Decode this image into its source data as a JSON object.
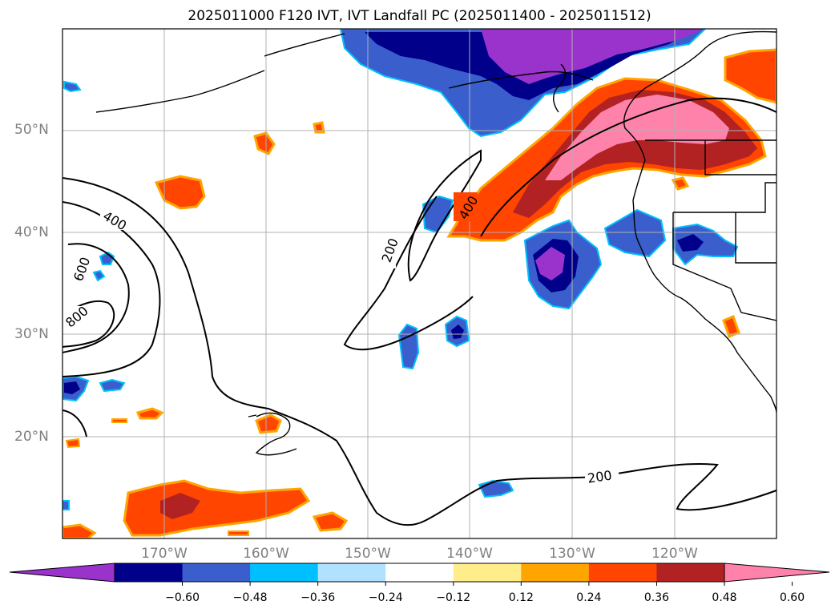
{
  "title": "2025011000 F120 IVT, IVT Landfall PC (2025011400 - 2025011512)",
  "map": {
    "lat_labels": [
      "50°N",
      "40°N",
      "30°N",
      "20°N"
    ],
    "lon_labels": [
      "170°W",
      "160°W",
      "150°W",
      "140°W",
      "130°W",
      "120°W"
    ],
    "contour_labels": [
      "400",
      "600",
      "800",
      "200",
      "400",
      "200"
    ]
  },
  "colorbar": {
    "colors": [
      "#9933cc",
      "#00008b",
      "#3a5fcd",
      "#00bfff",
      "#b0e2ff",
      "#ffffff",
      "#ffec8b",
      "#ffa500",
      "#ff4500",
      "#b22222",
      "#ff82ab"
    ],
    "tick_labels": [
      "−0.60",
      "−0.48",
      "−0.36",
      "−0.24",
      "−0.12",
      "0.12",
      "0.24",
      "0.36",
      "0.48",
      "0.60"
    ]
  }
}
